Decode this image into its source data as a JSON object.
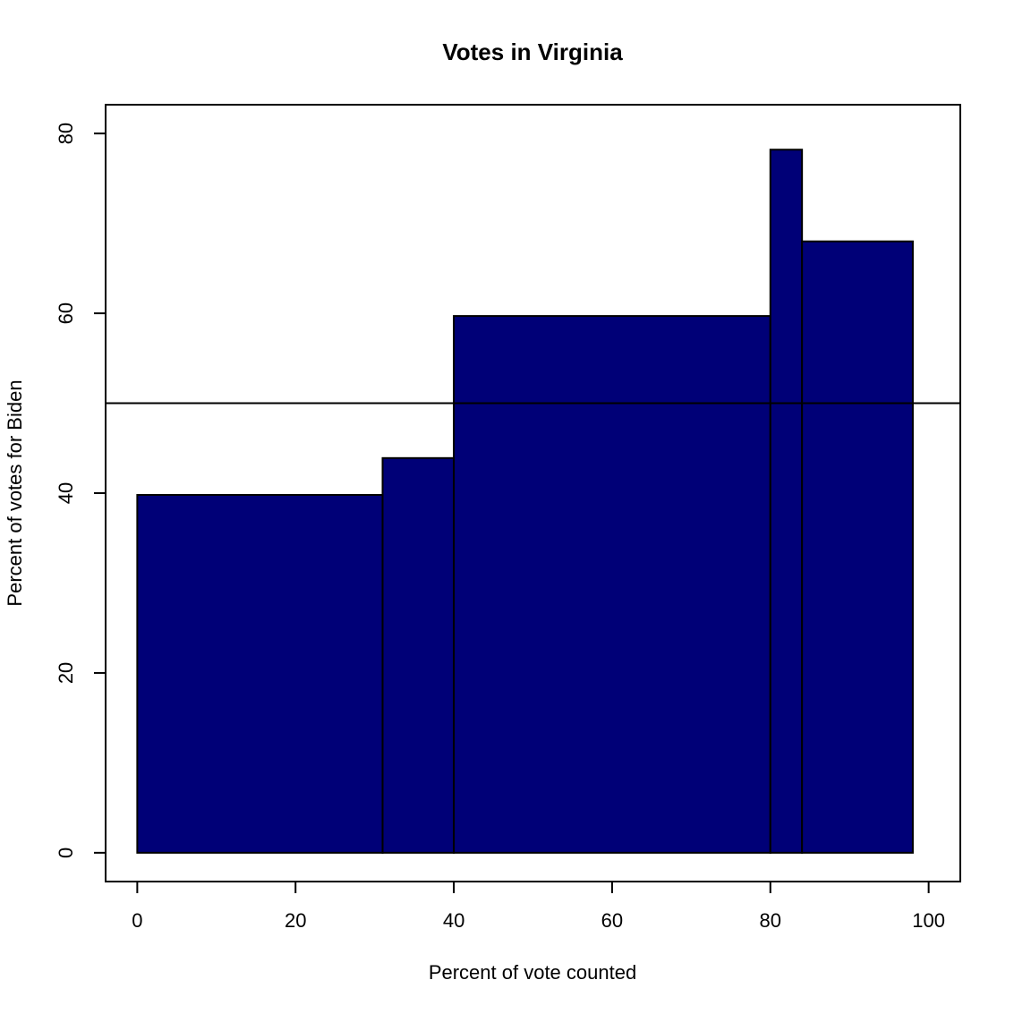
{
  "chart_data": {
    "type": "histogram",
    "title": "Votes in Virginia",
    "x_label": "Percent of vote counted",
    "y_label": "Percent of votes for Biden",
    "bins": [
      0,
      31,
      40,
      80,
      84,
      98
    ],
    "values": [
      39.8,
      43.9,
      59.7,
      78.2,
      68.0
    ],
    "color": "#000077",
    "hline": 50,
    "xlim": [
      -4,
      104
    ],
    "xticks": [
      0,
      20,
      40,
      60,
      80,
      100
    ],
    "ylim": [
      -3.2,
      83.2
    ],
    "yticks": [
      0,
      20,
      40,
      60,
      80
    ]
  }
}
